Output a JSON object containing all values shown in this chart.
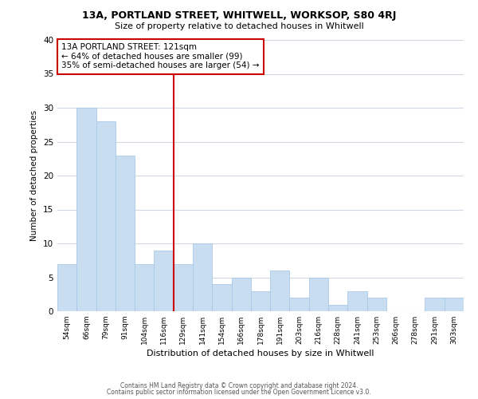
{
  "title1": "13A, PORTLAND STREET, WHITWELL, WORKSOP, S80 4RJ",
  "title2": "Size of property relative to detached houses in Whitwell",
  "xlabel": "Distribution of detached houses by size in Whitwell",
  "ylabel": "Number of detached properties",
  "bar_labels": [
    "54sqm",
    "66sqm",
    "79sqm",
    "91sqm",
    "104sqm",
    "116sqm",
    "129sqm",
    "141sqm",
    "154sqm",
    "166sqm",
    "178sqm",
    "191sqm",
    "203sqm",
    "216sqm",
    "228sqm",
    "241sqm",
    "253sqm",
    "266sqm",
    "278sqm",
    "291sqm",
    "303sqm"
  ],
  "bar_values": [
    7,
    30,
    28,
    23,
    7,
    9,
    7,
    10,
    4,
    5,
    3,
    6,
    2,
    5,
    1,
    3,
    2,
    0,
    0,
    2,
    2
  ],
  "bar_color": "#c9ddf0",
  "bar_edge_color": "#a8c8e8",
  "property_line_x": 5.5,
  "property_line_color": "#cc0000",
  "annotation_text": "13A PORTLAND STREET: 121sqm\n← 64% of detached houses are smaller (99)\n35% of semi-detached houses are larger (54) →",
  "annotation_box_edge": "#cc0000",
  "annotation_box_face": "white",
  "ylim": [
    0,
    40
  ],
  "yticks": [
    0,
    5,
    10,
    15,
    20,
    25,
    30,
    35,
    40
  ],
  "footer_line1": "Contains HM Land Registry data © Crown copyright and database right 2024.",
  "footer_line2": "Contains public sector information licensed under the Open Government Licence v3.0.",
  "bg_color": "#ffffff",
  "grid_color": "#d0d8e4"
}
